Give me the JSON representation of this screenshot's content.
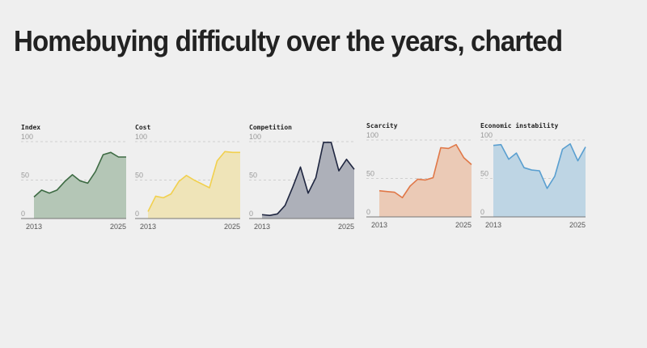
{
  "page_title": "Homebuying difficulty over the years, charted",
  "chart_data": [
    {
      "type": "area",
      "title": "Index",
      "x": [
        2013,
        2014,
        2015,
        2016,
        2017,
        2018,
        2019,
        2020,
        2021,
        2022,
        2023,
        2024,
        2025
      ],
      "values": [
        28,
        37,
        33,
        37,
        48,
        57,
        49,
        46,
        61,
        83,
        86,
        80,
        80
      ],
      "ylim": [
        0,
        100
      ],
      "yticks": [
        "0",
        "50",
        "100"
      ],
      "xtick_labels": [
        "2013",
        "2025"
      ],
      "line_color": "#3e6b44",
      "fill_color": "#b4c6b6"
    },
    {
      "type": "area",
      "title": "Cost",
      "x": [
        2013,
        2014,
        2015,
        2016,
        2017,
        2018,
        2019,
        2020,
        2021,
        2022,
        2023,
        2024,
        2025
      ],
      "values": [
        9,
        29,
        27,
        32,
        48,
        56,
        50,
        45,
        40,
        75,
        87,
        86,
        86
      ],
      "ylim": [
        0,
        100
      ],
      "yticks": [
        "0",
        "50",
        "100"
      ],
      "xtick_labels": [
        "2013",
        "2025"
      ],
      "line_color": "#f1d04e",
      "fill_color": "#efe4b8"
    },
    {
      "type": "area",
      "title": "Competition",
      "x": [
        2013,
        2014,
        2015,
        2016,
        2017,
        2018,
        2019,
        2020,
        2021,
        2022,
        2023,
        2024,
        2025
      ],
      "values": [
        5,
        4,
        6,
        17,
        41,
        67,
        33,
        53,
        99,
        99,
        62,
        77,
        64
      ],
      "ylim": [
        0,
        100
      ],
      "yticks": [
        "0",
        "50",
        "100"
      ],
      "xtick_labels": [
        "2013",
        "2025"
      ],
      "line_color": "#1f2640",
      "fill_color": "#adb0b9"
    },
    {
      "type": "area",
      "title": "Scarcity",
      "x": [
        2013,
        2014,
        2015,
        2016,
        2017,
        2018,
        2019,
        2020,
        2021,
        2022,
        2023,
        2024,
        2025
      ],
      "values": [
        34,
        33,
        32,
        25,
        40,
        49,
        48,
        51,
        90,
        89,
        94,
        77,
        68
      ],
      "ylim": [
        0,
        100
      ],
      "yticks": [
        "0",
        "50",
        "100"
      ],
      "xtick_labels": [
        "2013",
        "2025"
      ],
      "line_color": "#e07848",
      "fill_color": "#ebcab6"
    },
    {
      "type": "area",
      "title": "Economic instability",
      "x": [
        2013,
        2014,
        2015,
        2016,
        2017,
        2018,
        2019,
        2020,
        2021,
        2022,
        2023,
        2024,
        2025
      ],
      "values": [
        93,
        94,
        75,
        83,
        64,
        61,
        60,
        37,
        53,
        88,
        95,
        73,
        91
      ],
      "ylim": [
        0,
        100
      ],
      "yticks": [
        "0",
        "50",
        "100"
      ],
      "xtick_labels": [
        "2013",
        "2025"
      ],
      "line_color": "#5a9fd0",
      "fill_color": "#bed5e4"
    }
  ]
}
